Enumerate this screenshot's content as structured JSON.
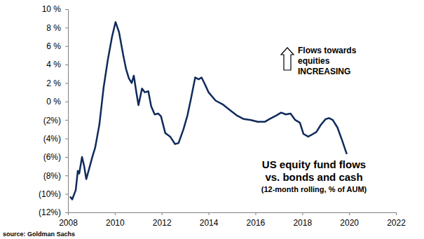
{
  "chart_data": {
    "type": "line",
    "title": [
      "US equity fund flows",
      "vs. bonds and cash"
    ],
    "subtitle": "(12-month rolling, % of AUM)",
    "annotation": [
      "Flows towards",
      "equities",
      "INCREASING"
    ],
    "source": "source: Goldman Sachs",
    "color": "#0f2b5b",
    "x": [
      2008.09,
      2008.18,
      2008.33,
      2008.42,
      2008.48,
      2008.6,
      2008.69,
      2008.78,
      2008.9,
      2009.04,
      2009.16,
      2009.34,
      2009.52,
      2009.7,
      2009.88,
      2010.03,
      2010.18,
      2010.36,
      2010.48,
      2010.6,
      2010.72,
      2010.81,
      2010.93,
      2011.01,
      2011.16,
      2011.28,
      2011.43,
      2011.55,
      2011.7,
      2011.85,
      2011.97,
      2012.15,
      2012.36,
      2012.57,
      2012.72,
      2012.93,
      2013.1,
      2013.25,
      2013.43,
      2013.58,
      2013.7,
      2013.82,
      2014.0,
      2014.3,
      2014.6,
      2014.9,
      2015.2,
      2015.5,
      2015.8,
      2016.1,
      2016.4,
      2016.6,
      2016.9,
      2017.1,
      2017.3,
      2017.5,
      2017.7,
      2017.9,
      2018.05,
      2018.25,
      2018.4,
      2018.6,
      2018.8,
      2019.0,
      2019.15,
      2019.3,
      2019.5,
      2019.7,
      2019.9
    ],
    "values": [
      -10.3,
      -10.6,
      -9.6,
      -7.5,
      -7.8,
      -6.0,
      -7.0,
      -8.4,
      -7.3,
      -6.0,
      -5.0,
      -2.5,
      1.5,
      4.5,
      7.0,
      8.6,
      7.5,
      5.0,
      3.5,
      2.5,
      2.0,
      2.8,
      0.8,
      -0.4,
      1.4,
      1.0,
      1.1,
      -0.5,
      -1.4,
      -1.3,
      -1.6,
      -3.4,
      -3.8,
      -4.6,
      -4.5,
      -3.0,
      -1.5,
      0.3,
      2.6,
      2.4,
      2.6,
      2.0,
      1.0,
      0.1,
      -0.3,
      -0.9,
      -1.5,
      -1.9,
      -2.0,
      -2.2,
      -2.2,
      -1.9,
      -1.5,
      -1.2,
      -1.4,
      -1.3,
      -2.0,
      -2.3,
      -3.5,
      -3.8,
      -3.6,
      -3.3,
      -2.5,
      -1.9,
      -1.8,
      -2.0,
      -2.8,
      -4.2,
      -5.7
    ],
    "xlim": [
      2008,
      2022
    ],
    "xticks": [
      2008,
      2010,
      2012,
      2014,
      2016,
      2018,
      2020,
      2022
    ],
    "ylim": [
      -12,
      10
    ],
    "yticks": [
      {
        "value": -12,
        "label": "(12%)"
      },
      {
        "value": -10,
        "label": "(10%)"
      },
      {
        "value": -8,
        "label": "(8%)"
      },
      {
        "value": -6,
        "label": "(6%)"
      },
      {
        "value": -4,
        "label": "(4%)"
      },
      {
        "value": -2,
        "label": "(2%)"
      },
      {
        "value": 0,
        "label": "0 %"
      },
      {
        "value": 2,
        "label": "2 %"
      },
      {
        "value": 4,
        "label": "4 %"
      },
      {
        "value": 6,
        "label": "6 %"
      },
      {
        "value": 8,
        "label": "8 %"
      },
      {
        "value": 10,
        "label": "10 %"
      }
    ],
    "grid": false
  }
}
